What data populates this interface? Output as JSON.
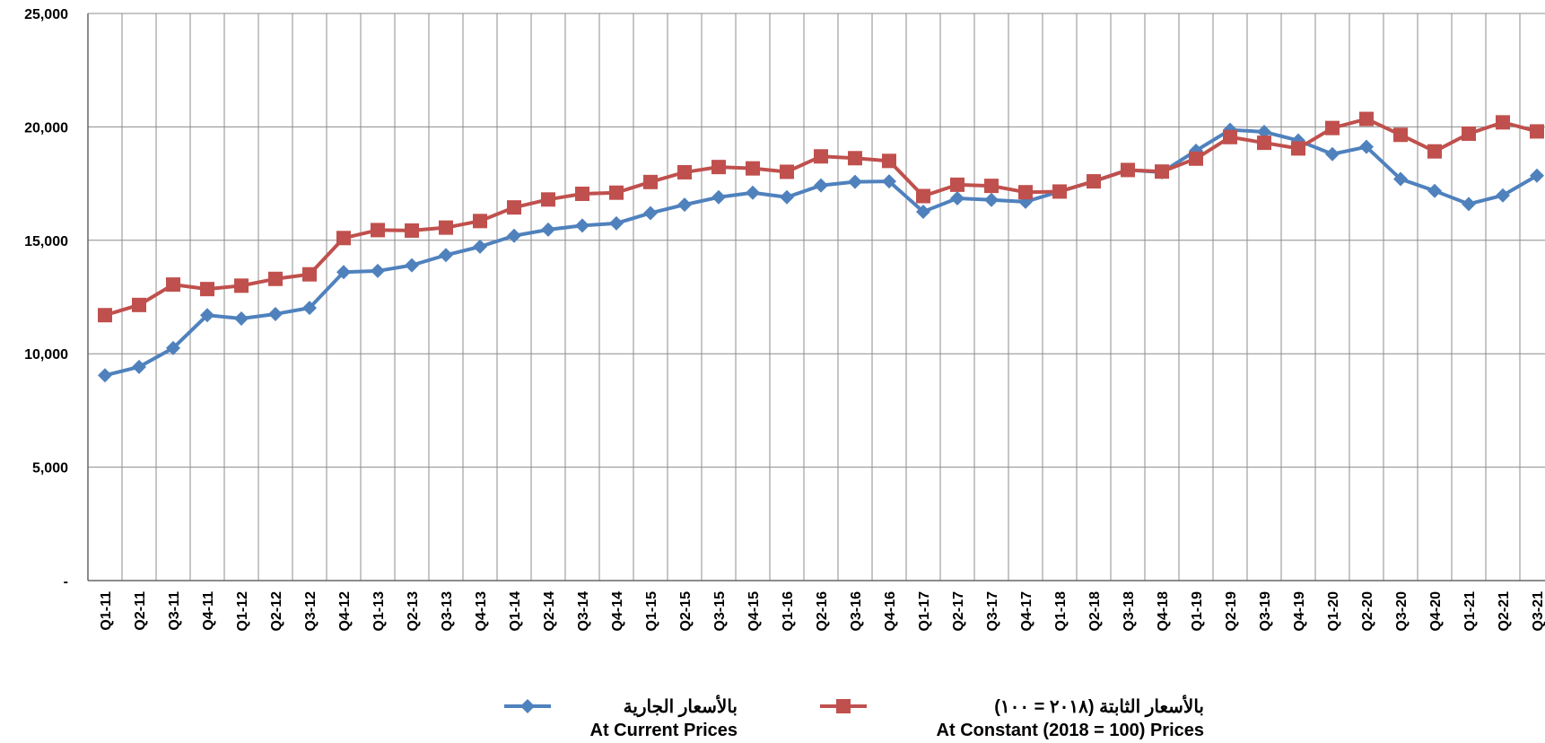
{
  "chart_data": {
    "type": "line",
    "title": "",
    "xlabel": "",
    "ylabel": "",
    "ylim": [
      0,
      25000
    ],
    "y_ticks": [
      {
        "value": 0,
        "label": "-"
      },
      {
        "value": 5000,
        "label": "5,000"
      },
      {
        "value": 10000,
        "label": "10,000"
      },
      {
        "value": 15000,
        "label": "15,000"
      },
      {
        "value": 20000,
        "label": "20,000"
      },
      {
        "value": 25000,
        "label": "25,000"
      }
    ],
    "grid": true,
    "legend_position": "bottom",
    "categories": [
      "Q1-11",
      "Q2-11",
      "Q3-11",
      "Q4-11",
      "Q1-12",
      "Q2-12",
      "Q3-12",
      "Q4-12",
      "Q1-13",
      "Q2-13",
      "Q3-13",
      "Q4-13",
      "Q1-14",
      "Q2-14",
      "Q3-14",
      "Q4-14",
      "Q1-15",
      "Q2-15",
      "Q3-15",
      "Q4-15",
      "Q1-16",
      "Q2-16",
      "Q3-16",
      "Q4-16",
      "Q1-17",
      "Q2-17",
      "Q3-17",
      "Q4-17",
      "Q1-18",
      "Q2-18",
      "Q3-18",
      "Q4-18",
      "Q1-19",
      "Q2-19",
      "Q3-19",
      "Q4-19",
      "Q1-20",
      "Q2-20",
      "Q3-20",
      "Q4-20",
      "Q1-21",
      "Q2-21",
      "Q3-21"
    ],
    "series": [
      {
        "name": "At Current Prices",
        "name_ar": "بالأسعار الجارية",
        "color": "#4F81BD",
        "marker": "diamond",
        "values": [
          9050,
          9420,
          10250,
          11700,
          11550,
          11750,
          12020,
          13600,
          13650,
          13900,
          14350,
          14720,
          15200,
          15470,
          15650,
          15750,
          16200,
          16570,
          16900,
          17100,
          16900,
          17420,
          17580,
          17600,
          16260,
          16850,
          16780,
          16700,
          17150,
          17600,
          18100,
          18000,
          18950,
          19870,
          19780,
          19400,
          18800,
          19120,
          17700,
          17180,
          16600,
          16980,
          17850
        ]
      },
      {
        "name": "At Constant (2018 = 100) Prices",
        "name_ar": "بالأسعار الثابتة (٢٠١٨ = ١٠٠)",
        "color": "#C0504D",
        "marker": "square",
        "values": [
          11700,
          12150,
          13050,
          12850,
          13000,
          13300,
          13500,
          15100,
          15450,
          15430,
          15560,
          15850,
          16450,
          16800,
          17050,
          17100,
          17570,
          18000,
          18230,
          18170,
          18020,
          18700,
          18620,
          18500,
          16950,
          17450,
          17400,
          17120,
          17150,
          17600,
          18100,
          18030,
          18600,
          19550,
          19300,
          19050,
          19950,
          20350,
          19650,
          18920,
          19700,
          20200,
          19800
        ]
      }
    ]
  }
}
